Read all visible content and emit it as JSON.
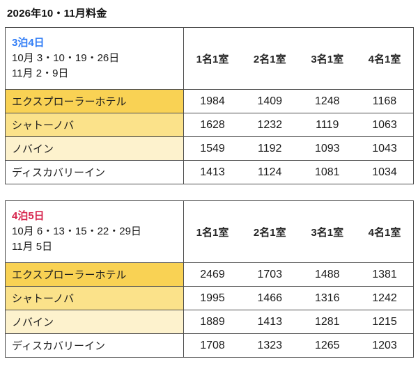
{
  "page_title": "2026年10・11月料金",
  "tables": [
    {
      "duration": "3泊4日",
      "duration_color": "#2f7cf6",
      "dates_line1": "10月 3・10・19・26日",
      "dates_line2": "11月 2・9日",
      "columns": [
        "1名1室",
        "2名1室",
        "3名1室",
        "4名1室"
      ],
      "rows": [
        {
          "hotel": "エクスプローラーホテル",
          "bg": "#f9d254",
          "prices": [
            "1984",
            "1409",
            "1248",
            "1168"
          ]
        },
        {
          "hotel": "シャトーノバ",
          "bg": "#fbe28a",
          "prices": [
            "1628",
            "1232",
            "1119",
            "1063"
          ]
        },
        {
          "hotel": "ノバイン",
          "bg": "#fdf2cd",
          "prices": [
            "1549",
            "1192",
            "1093",
            "1043"
          ]
        },
        {
          "hotel": "ディスカバリーイン",
          "bg": "#ffffff",
          "prices": [
            "1413",
            "1124",
            "1081",
            "1034"
          ]
        }
      ]
    },
    {
      "duration": "4泊5日",
      "duration_color": "#d7254d",
      "dates_line1": "10月 6・13・15・22・29日",
      "dates_line2": "11月 5日",
      "columns": [
        "1名1室",
        "2名1室",
        "3名1室",
        "4名1室"
      ],
      "rows": [
        {
          "hotel": "エクスプローラーホテル",
          "bg": "#f9d254",
          "prices": [
            "2469",
            "1703",
            "1488",
            "1381"
          ]
        },
        {
          "hotel": "シャトーノバ",
          "bg": "#fbe28a",
          "prices": [
            "1995",
            "1466",
            "1316",
            "1242"
          ]
        },
        {
          "hotel": "ノバイン",
          "bg": "#fdf2cd",
          "prices": [
            "1889",
            "1413",
            "1281",
            "1215"
          ]
        },
        {
          "hotel": "ディスカバリーイン",
          "bg": "#ffffff",
          "prices": [
            "1708",
            "1323",
            "1265",
            "1203"
          ]
        }
      ]
    }
  ]
}
